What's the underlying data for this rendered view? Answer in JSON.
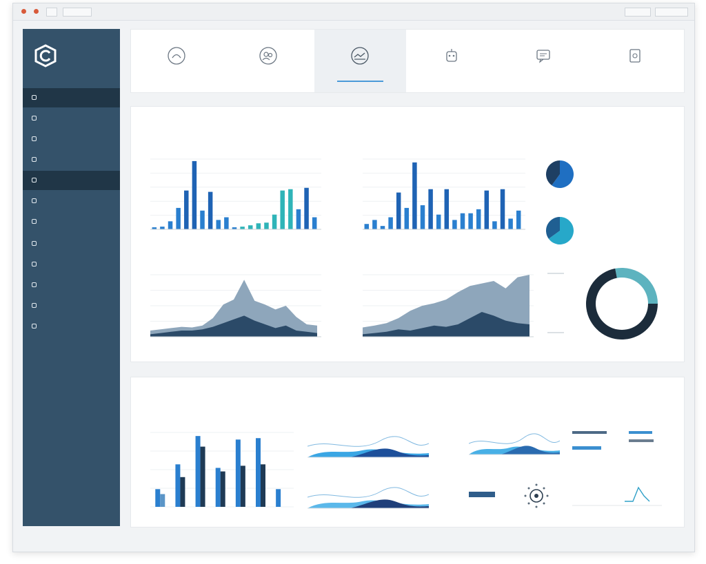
{
  "window": {
    "title_field": "",
    "toolbar_buttons": [
      "",
      ""
    ]
  },
  "sidebar": {
    "brand_line1": "",
    "brand_line2": "",
    "items": [
      {
        "label": "",
        "badge": "",
        "active": true
      },
      {
        "label": "",
        "badge": "",
        "active": false
      },
      {
        "label": "",
        "badge": "",
        "active": false
      },
      {
        "label": "",
        "badge": "",
        "active": false
      },
      {
        "label": "",
        "badge": "",
        "active": true
      },
      {
        "label": "",
        "badge": "",
        "active": false
      },
      {
        "label": "",
        "badge": "",
        "active": false
      },
      {
        "label": "",
        "badge": "",
        "active": false
      },
      {
        "label": "",
        "badge": "",
        "active": false
      },
      {
        "label": "",
        "badge": "",
        "active": false
      },
      {
        "label": "",
        "badge": "",
        "active": false
      },
      {
        "label": "",
        "badge": "",
        "active": false
      }
    ]
  },
  "tabs": [
    {
      "label": "",
      "icon": "gauge-icon"
    },
    {
      "label": "",
      "icon": "users-icon"
    },
    {
      "label": "",
      "icon": "analytics-icon",
      "active": true
    },
    {
      "label": "",
      "icon": "robot-icon"
    },
    {
      "label": "",
      "icon": "chat-icon"
    },
    {
      "label": "",
      "icon": "document-icon"
    }
  ],
  "section1": {
    "title": "",
    "chart_a_label": "",
    "chart_b_label": "",
    "chart_c_label": "",
    "chart_d_label": "",
    "pie1_label": "",
    "pie2_label": "",
    "pie1_legend": [
      "",
      ""
    ],
    "pie2_legend": [
      "",
      ""
    ]
  },
  "section2": {
    "title": "",
    "chart_e_label": "",
    "chart_f_label": "",
    "chart_g_label": "",
    "chart_h_label": "",
    "chart_i_label": "",
    "chart_j_label": ""
  },
  "colors": {
    "sidebar": "#34526a",
    "sidebar_active": "#203647",
    "bar_blue": "#1f6fc2",
    "bar_teal": "#2fb4b8",
    "area_light": "#8ea6bb",
    "area_dark": "#2b4a68",
    "accent": "#4a9ad8"
  },
  "chart_data": [
    {
      "type": "bar",
      "id": "chart-a",
      "values": [
        3,
        4,
        12,
        32,
        58,
        102,
        28,
        56,
        14,
        18,
        3,
        4,
        6,
        9,
        10,
        22,
        58,
        60,
        30,
        62,
        18
      ]
    },
    {
      "type": "bar",
      "id": "chart-b",
      "values": [
        8,
        14,
        5,
        18,
        55,
        32,
        100,
        36,
        60,
        22,
        60,
        14,
        24,
        24,
        30,
        58,
        12,
        60,
        16,
        28
      ]
    },
    {
      "type": "area",
      "id": "chart-c",
      "series_light": [
        10,
        12,
        14,
        16,
        15,
        18,
        30,
        52,
        60,
        92,
        58,
        52,
        44,
        50,
        32,
        20,
        18
      ],
      "series_dark": [
        4,
        6,
        8,
        10,
        10,
        12,
        16,
        22,
        28,
        34,
        26,
        20,
        14,
        18,
        10,
        8,
        6
      ]
    },
    {
      "type": "area",
      "id": "chart-d",
      "series_light": [
        15,
        18,
        22,
        30,
        42,
        50,
        54,
        60,
        72,
        82,
        86,
        90,
        78,
        96,
        100
      ],
      "series_dark": [
        4,
        6,
        8,
        12,
        10,
        14,
        18,
        16,
        20,
        30,
        40,
        34,
        26,
        22,
        20
      ]
    },
    {
      "type": "pie",
      "id": "pie-1",
      "values": [
        60,
        40
      ]
    },
    {
      "type": "pie",
      "id": "pie-2",
      "values": [
        65,
        35
      ]
    },
    {
      "type": "pie",
      "id": "donut",
      "values": [
        72,
        28
      ]
    },
    {
      "type": "bar",
      "id": "chart-e",
      "series": [
        {
          "values": [
            25,
            60,
            100,
            55,
            95,
            97,
            25
          ]
        },
        {
          "values": [
            18,
            42,
            85,
            50,
            58,
            60,
            0
          ]
        }
      ]
    }
  ]
}
